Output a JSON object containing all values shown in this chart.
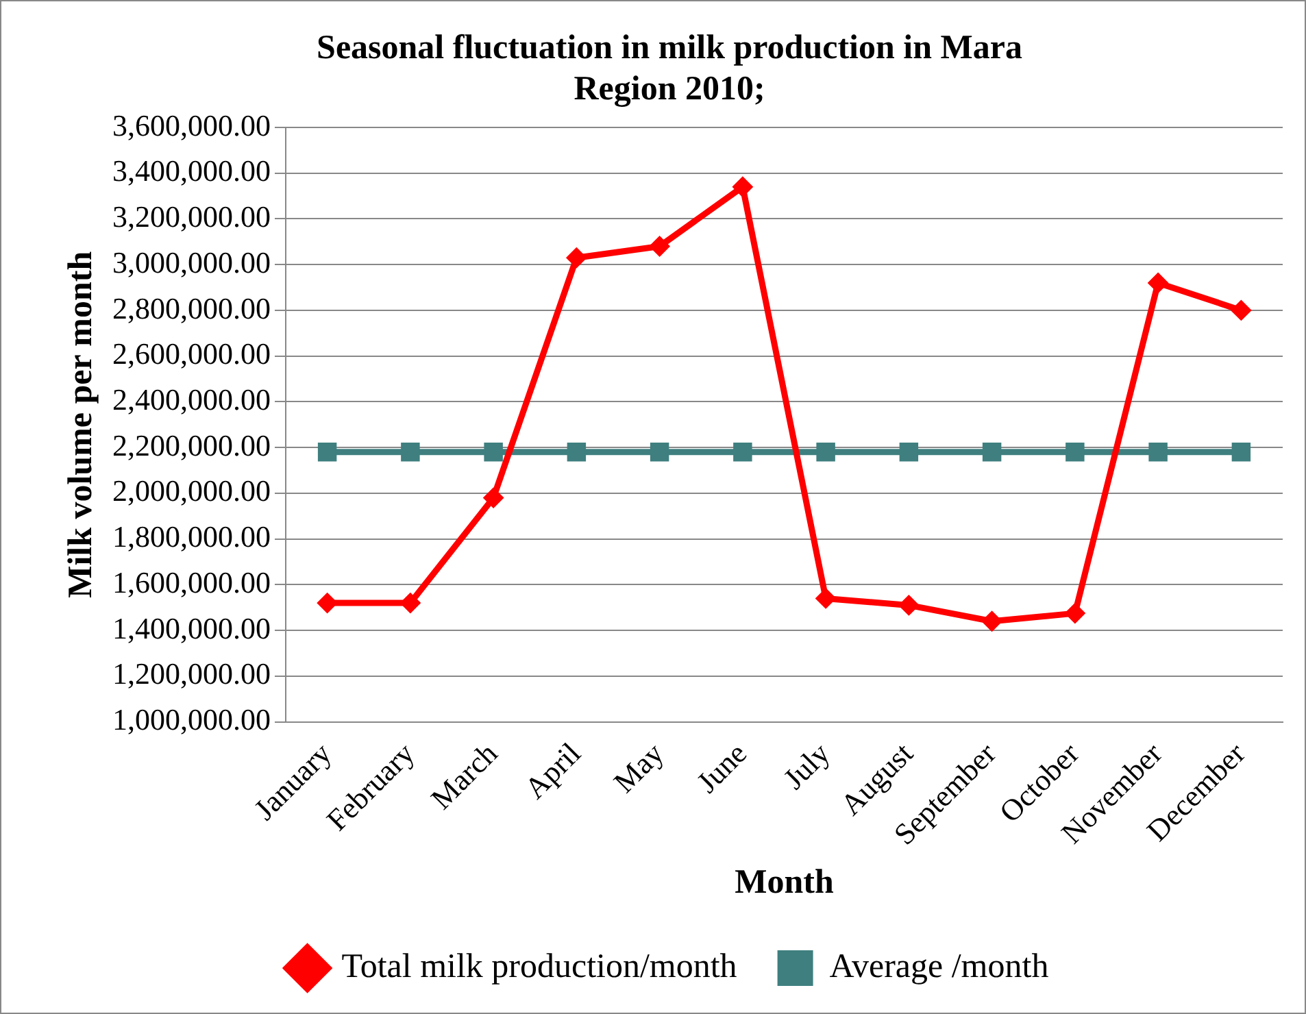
{
  "chart_data": {
    "type": "line",
    "title": "Seasonal fluctuation in milk production in Mara Region 2010;",
    "xlabel": "Month",
    "ylabel": "Milk volume per month",
    "categories": [
      "January",
      "February",
      "March",
      "April",
      "May",
      "June",
      "July",
      "August",
      "September",
      "October",
      "November",
      "December"
    ],
    "series": [
      {
        "name": "Total milk production/month",
        "color": "#ff0000",
        "marker": "diamond",
        "values": [
          1520000,
          1520000,
          1980000,
          3030000,
          3080000,
          3340000,
          1540000,
          1510000,
          1440000,
          1475000,
          2920000,
          2800000
        ]
      },
      {
        "name": "Average /month",
        "color": "#3f7f7f",
        "marker": "square",
        "values": [
          2180000,
          2180000,
          2180000,
          2180000,
          2180000,
          2180000,
          2180000,
          2180000,
          2180000,
          2180000,
          2180000,
          2180000
        ]
      }
    ],
    "ylim": [
      1000000,
      3600000
    ],
    "yticks": [
      {
        "value": 1000000,
        "label": "1,000,000.00"
      },
      {
        "value": 1200000,
        "label": "1,200,000.00"
      },
      {
        "value": 1400000,
        "label": "1,400,000.00"
      },
      {
        "value": 1600000,
        "label": "1,600,000.00"
      },
      {
        "value": 1800000,
        "label": "1,800,000.00"
      },
      {
        "value": 2000000,
        "label": "2,000,000.00"
      },
      {
        "value": 2200000,
        "label": "2,200,000.00"
      },
      {
        "value": 2400000,
        "label": "2,400,000.00"
      },
      {
        "value": 2600000,
        "label": "2,600,000.00"
      },
      {
        "value": 2800000,
        "label": "2,800,000.00"
      },
      {
        "value": 3000000,
        "label": "3,000,000.00"
      },
      {
        "value": 3200000,
        "label": "3,200,000.00"
      },
      {
        "value": 3400000,
        "label": "3,400,000.00"
      },
      {
        "value": 3600000,
        "label": "3,600,000.00"
      }
    ],
    "grid": "y",
    "legend": "bottom",
    "line_style": "solid"
  }
}
